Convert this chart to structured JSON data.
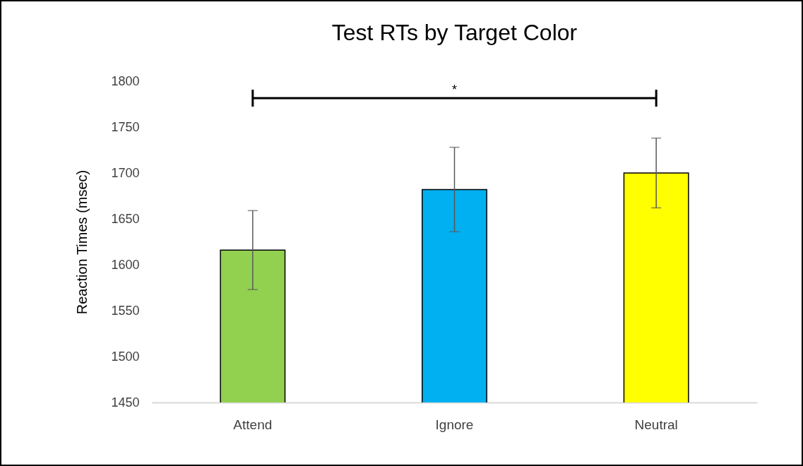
{
  "chart_data": {
    "type": "bar",
    "title": "Test RTs by Target Color",
    "ylabel": "Reaction Times (msec)",
    "categories": [
      "Attend",
      "Ignore",
      "Neutral"
    ],
    "values": [
      1616,
      1682,
      1700
    ],
    "colors": [
      "#92d050",
      "#00b0f0",
      "#ffff00"
    ],
    "errors": [
      43,
      46,
      38
    ],
    "ylim": [
      1450,
      1800
    ],
    "yticks": [
      1450,
      1500,
      1550,
      1600,
      1650,
      1700,
      1750,
      1800
    ],
    "grid": false,
    "legend": false,
    "annotations": [
      "*"
    ]
  }
}
